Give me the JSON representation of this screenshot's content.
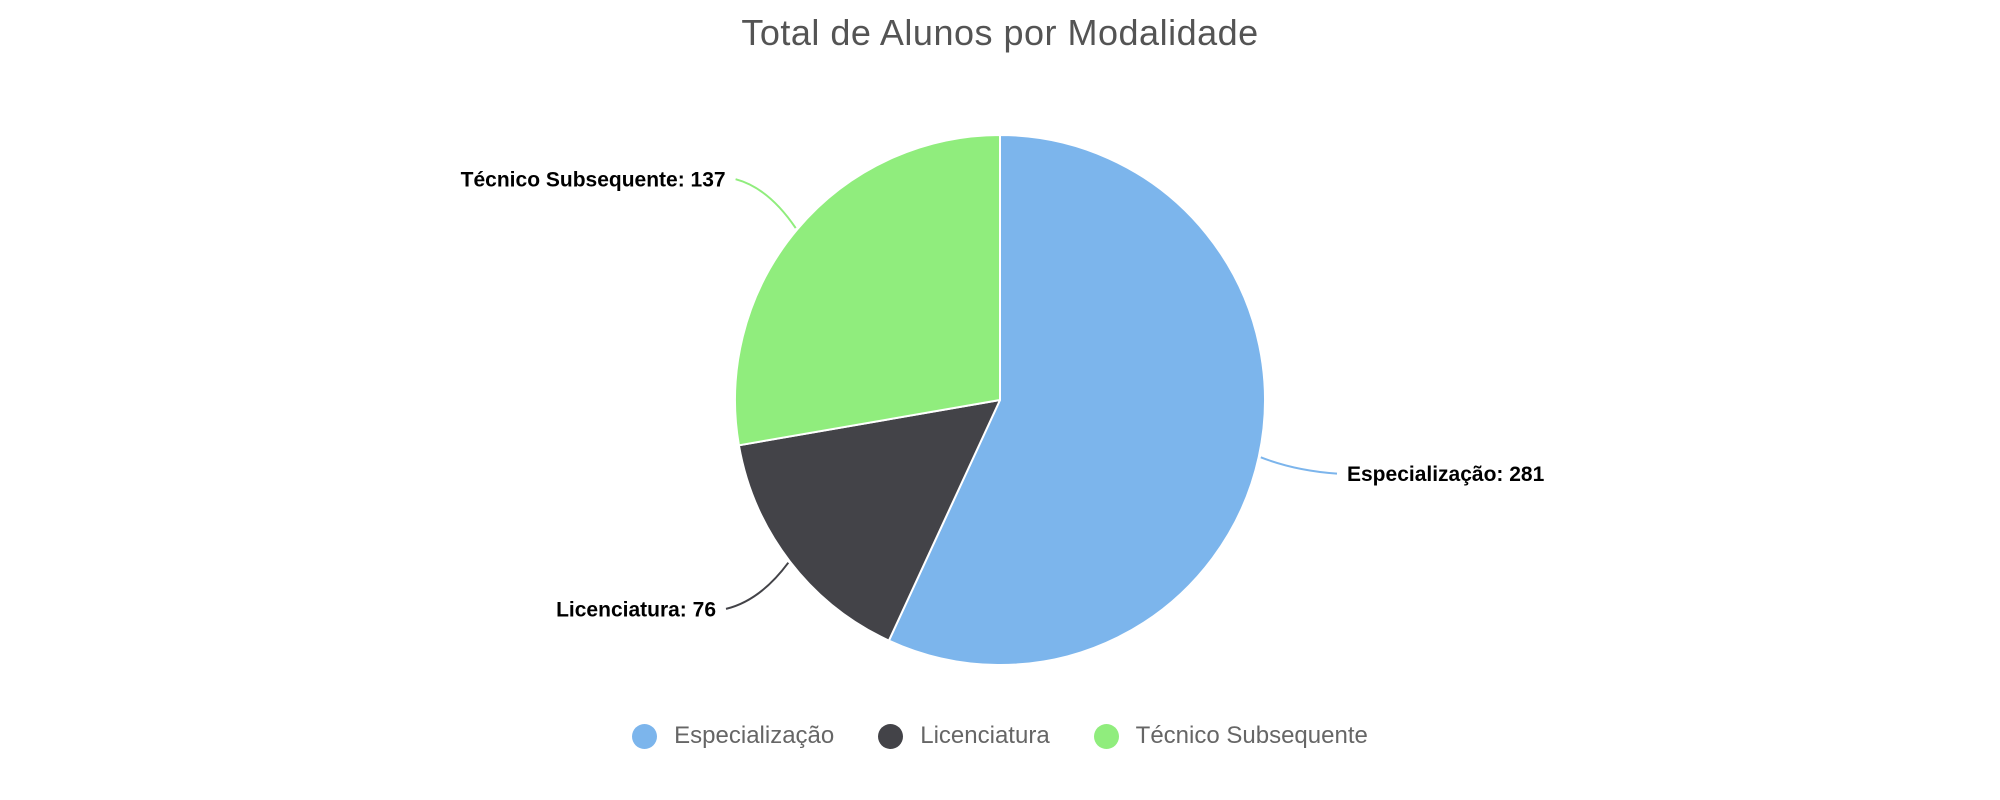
{
  "chart_data": {
    "type": "pie",
    "title": "Total de Alunos por Modalidade",
    "label_format": "{name}: {value}",
    "direction": "clockwise",
    "start_angle_deg": 0,
    "legend_position": "bottom",
    "series": [
      {
        "name": "Especialização",
        "value": 281,
        "color": "#7cb5ec"
      },
      {
        "name": "Licenciatura",
        "value": 76,
        "color": "#434348"
      },
      {
        "name": "Técnico Subsequente",
        "value": 137,
        "color": "#90ed7d"
      }
    ],
    "data_labels": [
      "Especialização: 281",
      "Licenciatura: 76",
      "Técnico Subsequente: 137"
    ]
  },
  "colors": {
    "background": "#ffffff",
    "title_text": "#545454",
    "legend_text": "#666666",
    "data_label_text": "#000000",
    "slice_border": "#ffffff"
  }
}
